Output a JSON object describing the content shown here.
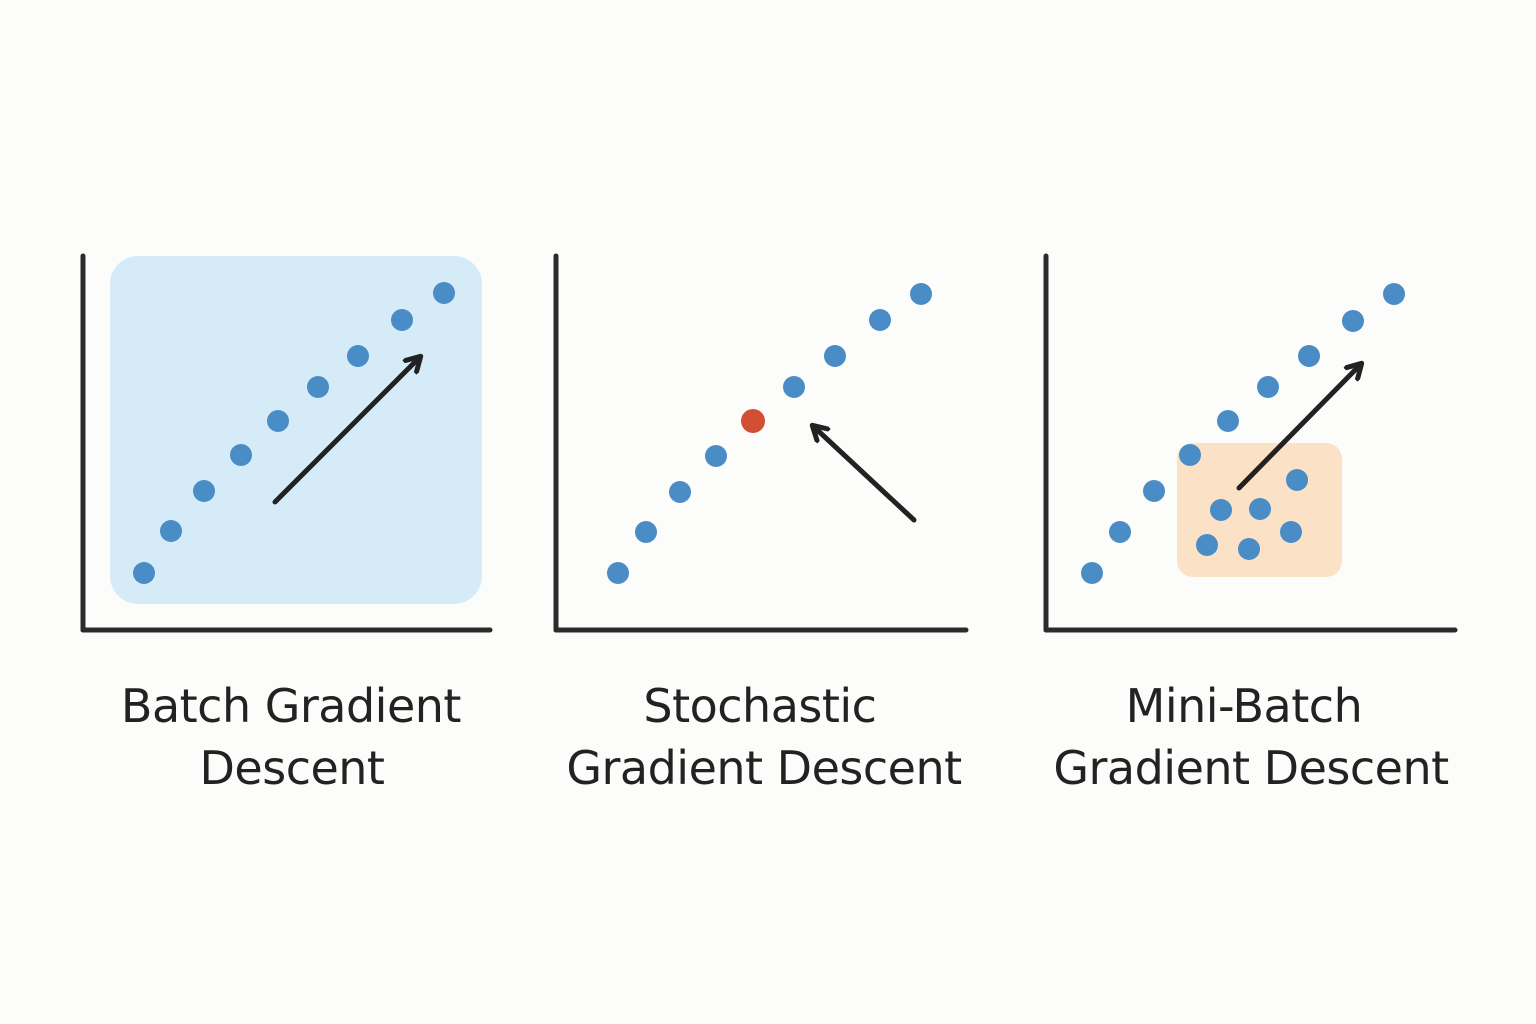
{
  "colors": {
    "background": "#fcfcfa",
    "axis": "#2b2b2b",
    "point": "#4a8dc6",
    "highlight_point": "#d24f35",
    "batch_box": "#d5ebf8",
    "minibatch_box": "#fbe1c6",
    "arrow": "#222222",
    "title": "#222222"
  },
  "panels": [
    {
      "id": "batch",
      "title_lines": [
        "Batch Gradient",
        "Descent"
      ],
      "highlight": "full-batch-box",
      "arrow_direction": "up-right"
    },
    {
      "id": "stochastic",
      "title_lines": [
        "Stochastic",
        "Gradient Descent"
      ],
      "highlight": "single-sample",
      "arrow_direction": "up-left"
    },
    {
      "id": "minibatch",
      "title_lines": [
        "Mini-Batch",
        "Gradient Descent"
      ],
      "highlight": "mini-batch-box",
      "arrow_direction": "up-right"
    }
  ]
}
